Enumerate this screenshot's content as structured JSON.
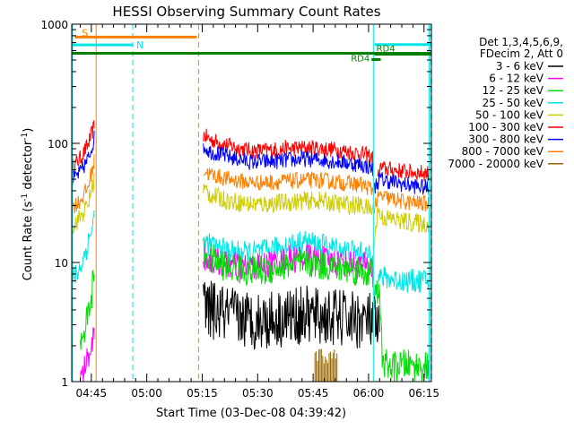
{
  "chart_data": {
    "type": "line",
    "title": "HESSI Observing Summary Count Rates",
    "xlabel": "Start Time (03-Dec-08 04:39:42)",
    "ylabel_parts": [
      "Count Rate (s",
      "-1",
      " detector",
      "-1",
      ")"
    ],
    "yscale": "log",
    "ylim": [
      1,
      1000
    ],
    "xlim_min": [
      279.7,
      377.0
    ],
    "y_ticks": [
      {
        "v": 1,
        "label": "1"
      },
      {
        "v": 10,
        "label": "10"
      },
      {
        "v": 100,
        "label": "100"
      },
      {
        "v": 1000,
        "label": "1000"
      }
    ],
    "x_ticks": [
      {
        "v": 285,
        "label": "04:45"
      },
      {
        "v": 300,
        "label": "05:00"
      },
      {
        "v": 315,
        "label": "05:15"
      },
      {
        "v": 330,
        "label": "05:30"
      },
      {
        "v": 345,
        "label": "05:45"
      },
      {
        "v": 360,
        "label": "06:00"
      },
      {
        "v": 375,
        "label": "06:15"
      }
    ],
    "legend": {
      "placement": "right",
      "header": [
        "Det 1,3,4,5,6,9,",
        "FDecim 2, Att 0"
      ],
      "items": [
        {
          "label": "3 - 6 keV",
          "color": "#000000"
        },
        {
          "label": "6 - 12 keV",
          "color": "#ff00ff"
        },
        {
          "label": "12 - 25 keV",
          "color": "#00dd00"
        },
        {
          "label": "25 - 50 keV",
          "color": "#00e5e5"
        },
        {
          "label": "50 - 100 keV",
          "color": "#cccc00"
        },
        {
          "label": "100 - 300 keV",
          "color": "#ff0000"
        },
        {
          "label": "300 - 800 keV",
          "color": "#0000ff"
        },
        {
          "label": "800 - 7000 keV",
          "color": "#ff7f00"
        },
        {
          "label": "7000 - 20000 keV",
          "color": "#996600"
        }
      ]
    },
    "markers": {
      "solid_cyan_lines": [
        279.9,
        361.3,
        376.4
      ],
      "dashed_cyan_lines": [
        296.2,
        376.9
      ],
      "solid_orange_lines": [
        286.3
      ],
      "dashed_orange_lines": [
        314.0
      ],
      "flags": [
        {
          "label": "S",
          "color": "#ff7f00",
          "x": [
            280.5,
            313.5
          ],
          "level": 780
        },
        {
          "label": "N",
          "color": "#00e5e5",
          "x": [
            279.7,
            296.2
          ],
          "level": 670
        },
        {
          "label": "RD4",
          "color": "#008000",
          "x": [
            279.7,
            376.9
          ],
          "level": 570
        },
        {
          "label": "RD4",
          "color": "#008000",
          "x": [
            360.8,
            363.3
          ],
          "level": 505
        },
        {
          "label": "RD4",
          "color": "#008000",
          "x": [
            361.6,
            376.9
          ],
          "level": 560
        },
        {
          "label": "",
          "color": "#00e5e5",
          "x": [
            361.6,
            376.9
          ],
          "level": 675
        }
      ]
    },
    "series": [
      {
        "name": "100 - 300 keV",
        "color": "#ff0000",
        "noise": 0.07,
        "segments": [
          {
            "x": [
              279.7,
              282,
              284,
              285.8
            ],
            "y": [
              62,
              75,
              95,
              140
            ]
          },
          {
            "x": [
              315.3,
              317,
              322,
              328,
              332,
              338,
              343,
              347,
              352,
              358,
              360.5,
              361.3
            ],
            "y": [
              118,
              108,
              96,
              87,
              87,
              90,
              92,
              91,
              88,
              82,
              78,
              75
            ]
          },
          {
            "x": [
              362.5,
              363.2,
              370,
              376.5
            ],
            "y": [
              50,
              62,
              58,
              56
            ]
          }
        ]
      },
      {
        "name": "300 - 800 keV",
        "color": "#0000ff",
        "noise": 0.07,
        "segments": [
          {
            "x": [
              279.7,
              282,
              284,
              285.8
            ],
            "y": [
              48,
              57,
              72,
              110
            ]
          },
          {
            "x": [
              315.3,
              317,
              322,
              328,
              332,
              338,
              343,
              347,
              352,
              358,
              360.5,
              361.3
            ],
            "y": [
              95,
              86,
              77,
              70,
              70,
              72,
              74,
              73,
              70,
              66,
              63,
              60
            ]
          },
          {
            "x": [
              361.6,
              363,
              370,
              376.5
            ],
            "y": [
              43,
              50,
              45,
              42
            ]
          }
        ]
      },
      {
        "name": "800 - 7000 keV",
        "color": "#ff7f00",
        "noise": 0.07,
        "segments": [
          {
            "x": [
              279.7,
              282,
              284,
              285.8
            ],
            "y": [
              29,
              33,
              42,
              70
            ]
          },
          {
            "x": [
              315.3,
              317,
              322,
              328,
              332,
              338,
              343,
              347,
              352,
              358,
              360.5,
              361.3
            ],
            "y": [
              60,
              55,
              50,
              47,
              47,
              48,
              49,
              49,
              47,
              45,
              42,
              40
            ]
          },
          {
            "x": [
              361.6,
              363,
              370,
              376.5
            ],
            "y": [
              30,
              36,
              32,
              31
            ]
          }
        ]
      },
      {
        "name": "50 - 100 keV",
        "color": "#cccc00",
        "noise": 0.08,
        "segments": [
          {
            "x": [
              279.7,
              282,
              284,
              285.8
            ],
            "y": [
              20,
              24,
              30,
              50
            ]
          },
          {
            "x": [
              315.3,
              317,
              322,
              328,
              332,
              338,
              343,
              347,
              352,
              358,
              360.5,
              361.3
            ],
            "y": [
              42,
              37,
              33,
              31,
              31,
              32,
              33,
              33,
              31,
              30,
              28,
              27
            ]
          },
          {
            "x": [
              361.6,
              362.5,
              363.5,
              370,
              376.5
            ],
            "y": [
              16,
              28,
              24,
              22,
              21
            ]
          }
        ]
      },
      {
        "name": "25 - 50 keV",
        "color": "#00e5e5",
        "noise": 0.1,
        "segments": [
          {
            "x": [
              279.7,
              282,
              284,
              285.8
            ],
            "y": [
              7,
              9,
              14,
              24
            ]
          },
          {
            "x": [
              315.3,
              317,
              322,
              328,
              332,
              338,
              343,
              347,
              352,
              358,
              360.5,
              361.3
            ],
            "y": [
              15,
              14,
              12.5,
              12,
              12.5,
              14,
              15,
              14,
              13,
              12,
              11,
              10
            ]
          },
          {
            "x": [
              361.6,
              363,
              370,
              376.5
            ],
            "y": [
              6.5,
              7.5,
              7,
              7
            ]
          }
        ]
      },
      {
        "name": "6 - 12 keV",
        "color": "#ff00ff",
        "noise": 0.12,
        "segments": [
          {
            "x": [
              282,
              284,
              285.8
            ],
            "y": [
              1,
              1.6,
              2.5
            ]
          },
          {
            "x": [
              315.3,
              317,
              322,
              328,
              332,
              338,
              343,
              347,
              352,
              358,
              360.5,
              361.3
            ],
            "y": [
              11,
              10.5,
              9.5,
              9,
              9.5,
              10.5,
              11,
              10.5,
              10,
              9.5,
              9,
              8.5
            ]
          }
        ]
      },
      {
        "name": "12 - 25 keV",
        "color": "#00dd00",
        "noise": 0.13,
        "segments": [
          {
            "x": [
              282,
              283.5,
              285,
              285.8
            ],
            "y": [
              2,
              3,
              5,
              9
            ]
          },
          {
            "x": [
              315.3,
              317,
              322,
              328,
              332,
              338,
              343,
              347,
              352,
              358,
              360.5,
              361.3
            ],
            "y": [
              12,
              11,
              9,
              8.5,
              8.5,
              9.5,
              10,
              9.5,
              9,
              8.5,
              8,
              8
            ]
          },
          {
            "x": [
              361.6,
              362.8,
              363.8,
              366,
              370,
              376.5
            ],
            "y": [
              5,
              6,
              1.5,
              1.3,
              1.4,
              1.3
            ]
          }
        ]
      },
      {
        "name": "3 - 6 keV",
        "color": "#000000",
        "noise": 0.25,
        "segments": [
          {
            "x": [
              315.3,
              317,
              322,
              328,
              332,
              338,
              343,
              347,
              352,
              358,
              360.5,
              361.3
            ],
            "y": [
              4.2,
              4.0,
              3.6,
              3.3,
              3.3,
              3.5,
              3.6,
              3.5,
              3.4,
              3.3,
              3.2,
              3.1
            ]
          },
          {
            "x": [
              361.6,
              363
            ],
            "y": [
              3,
              2.5
            ]
          }
        ]
      },
      {
        "name": "7000 - 20000 keV",
        "color": "#996600",
        "noise": 0.0,
        "segments": [],
        "bursts": [
          [
            345.5,
            351.5,
            1.4,
            1.9
          ]
        ]
      }
    ]
  }
}
